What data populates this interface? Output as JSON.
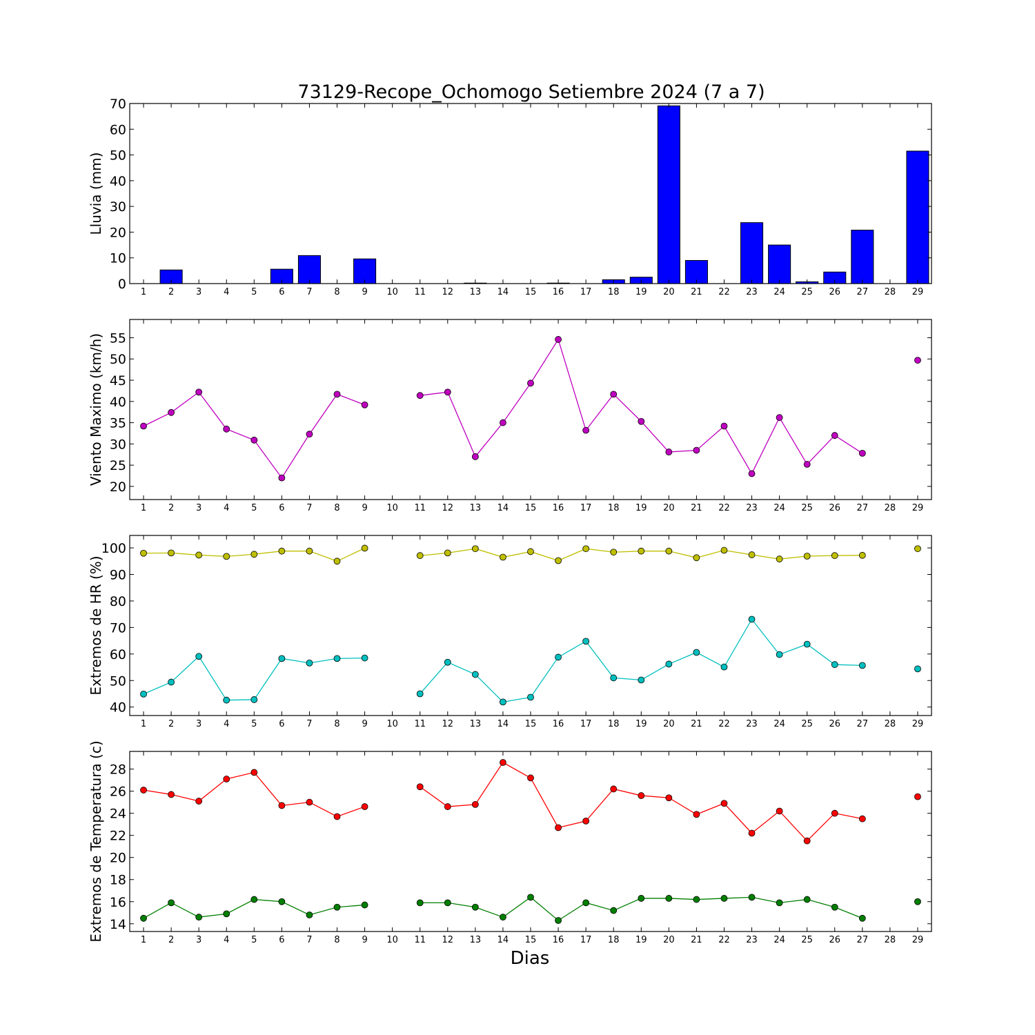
{
  "title": "73129-Recope_Ochomogo Setiembre 2024  (7 a 7)",
  "xlabel": "Dias",
  "colors": {
    "rain_bar": "#0000ff",
    "wind": "#bf00bf",
    "hr_max": "#bfbf00",
    "hr_min": "#00bfbf",
    "temp_max": "#ff0000",
    "temp_min": "#007f00"
  },
  "chart_data": [
    {
      "type": "bar",
      "ylabel": "Lluvia (mm)",
      "ylim": [
        0,
        70
      ],
      "yticks": [
        0,
        10,
        20,
        30,
        40,
        50,
        60,
        70
      ],
      "x": [
        1,
        2,
        3,
        4,
        5,
        6,
        7,
        8,
        9,
        10,
        11,
        12,
        13,
        14,
        15,
        16,
        17,
        18,
        19,
        20,
        21,
        22,
        23,
        24,
        25,
        26,
        27,
        28,
        29
      ],
      "xlim": [
        0.5,
        29.5
      ],
      "series": [
        {
          "values": [
            0,
            5.3,
            0,
            0,
            0,
            5.6,
            10.9,
            0,
            9.6,
            0,
            0,
            0,
            0.2,
            0,
            0,
            0.2,
            0,
            1.5,
            2.5,
            69.1,
            9,
            0,
            23.7,
            15,
            0.7,
            4.5,
            20.8,
            0,
            51.5
          ],
          "color": "#0000ff"
        }
      ]
    },
    {
      "type": "line",
      "ylabel": "Viento Maximo (km/h)",
      "ylim": [
        16.9,
        59.3
      ],
      "yticks": [
        20,
        25,
        30,
        35,
        40,
        45,
        50,
        55
      ],
      "x": [
        1,
        2,
        3,
        4,
        5,
        6,
        7,
        8,
        9,
        10,
        11,
        12,
        13,
        14,
        15,
        16,
        17,
        18,
        19,
        20,
        21,
        22,
        23,
        24,
        25,
        26,
        27,
        28,
        29
      ],
      "xlim": [
        0.5,
        29.5
      ],
      "series": [
        {
          "values": [
            34.2,
            37.4,
            42.2,
            33.5,
            30.9,
            22,
            32.3,
            41.7,
            39.2,
            null,
            41.4,
            42.2,
            27,
            35,
            44.3,
            54.6,
            33.2,
            41.7,
            35.3,
            28.1,
            28.5,
            34.2,
            23,
            36.2,
            25.2,
            32,
            27.8,
            null,
            49.7
          ],
          "color": "#bf00bf"
        }
      ]
    },
    {
      "type": "line",
      "ylabel": "Extremos de HR (%)",
      "ylim": [
        36.8,
        104.7
      ],
      "yticks": [
        40,
        50,
        60,
        70,
        80,
        90,
        100
      ],
      "x": [
        1,
        2,
        3,
        4,
        5,
        6,
        7,
        8,
        9,
        10,
        11,
        12,
        13,
        14,
        15,
        16,
        17,
        18,
        19,
        20,
        21,
        22,
        23,
        24,
        25,
        26,
        27,
        28,
        29
      ],
      "xlim": [
        0.5,
        29.5
      ],
      "series": [
        {
          "values": [
            98,
            98.1,
            97.3,
            96.8,
            97.6,
            98.8,
            98.8,
            95,
            99.9,
            null,
            97.1,
            98.1,
            99.7,
            96.5,
            98.6,
            95.2,
            99.7,
            98.4,
            98.8,
            98.8,
            96.3,
            99.1,
            97.4,
            95.8,
            96.9,
            97.1,
            97.2,
            null,
            99.7
          ],
          "color": "#bfbf00"
        },
        {
          "values": [
            44.9,
            49.4,
            59.1,
            42.6,
            42.8,
            58.3,
            56.6,
            58.3,
            58.5,
            null,
            45,
            56.9,
            52.3,
            41.9,
            43.7,
            58.8,
            64.8,
            51,
            50.2,
            56.2,
            60.6,
            55.1,
            73.1,
            59.8,
            63.7,
            56,
            55.7,
            null,
            54.4
          ],
          "color": "#00bfbf"
        }
      ]
    },
    {
      "type": "line",
      "ylabel": "Extremos de Temperatura (c)",
      "ylim": [
        13.3,
        29.6
      ],
      "yticks": [
        14,
        16,
        18,
        20,
        22,
        24,
        26,
        28
      ],
      "x": [
        1,
        2,
        3,
        4,
        5,
        6,
        7,
        8,
        9,
        10,
        11,
        12,
        13,
        14,
        15,
        16,
        17,
        18,
        19,
        20,
        21,
        22,
        23,
        24,
        25,
        26,
        27,
        28,
        29
      ],
      "xlim": [
        0.5,
        29.5
      ],
      "series": [
        {
          "values": [
            26.1,
            25.7,
            25.1,
            27.1,
            27.7,
            24.7,
            25,
            23.7,
            24.6,
            null,
            26.4,
            24.6,
            24.8,
            28.6,
            27.2,
            22.7,
            23.3,
            26.2,
            25.6,
            25.4,
            23.9,
            24.9,
            22.2,
            24.2,
            21.5,
            24,
            23.5,
            null,
            25.5
          ],
          "color": "#ff0000"
        },
        {
          "values": [
            14.5,
            15.9,
            14.6,
            14.9,
            16.2,
            16,
            14.8,
            15.5,
            15.7,
            null,
            15.9,
            15.9,
            15.5,
            14.6,
            16.4,
            14.3,
            15.9,
            15.2,
            16.3,
            16.3,
            16.2,
            16.3,
            16.4,
            15.9,
            16.2,
            15.5,
            14.5,
            null,
            16
          ],
          "color": "#007f00"
        }
      ]
    }
  ]
}
